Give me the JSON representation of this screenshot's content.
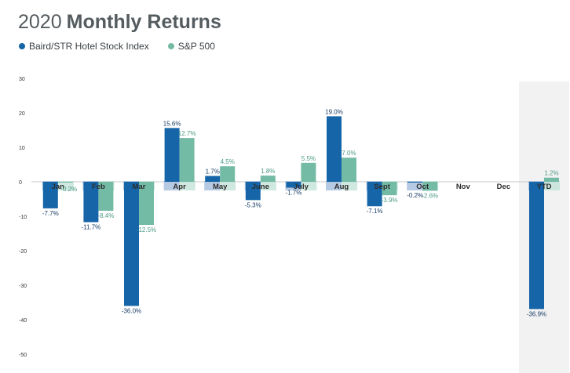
{
  "header": {
    "year": "2020",
    "title": "Monthly Returns"
  },
  "chart_data": {
    "type": "bar",
    "title": "2020 Monthly Returns",
    "xlabel": "",
    "ylabel": "",
    "ylim": [
      -50,
      30
    ],
    "y_ticks": [
      "30",
      "20",
      "10",
      "0",
      "-10",
      "-20",
      "-30",
      "-40",
      "-50"
    ],
    "categories": [
      "Jan",
      "Feb",
      "Mar",
      "Apr",
      "May",
      "June",
      "July",
      "Aug",
      "Sept",
      "Oct",
      "Nov",
      "Dec",
      "YTD"
    ],
    "series": [
      {
        "name": "Baird/STR Hotel Stock Index",
        "color": "#1565a8",
        "values": [
          -7.7,
          -11.7,
          -36.0,
          15.6,
          1.7,
          -5.3,
          -1.7,
          19.0,
          -7.1,
          -0.2,
          null,
          null,
          -36.9
        ],
        "labels": [
          "-7.7%",
          "-11.7%",
          "-36.0%",
          "15.6%",
          "1.7%",
          "-5.3%",
          "-1.7%",
          "19.0%",
          "-7.1%",
          "-0.2%",
          "",
          "",
          "-36.9%"
        ]
      },
      {
        "name": "S&P 500",
        "color": "#74bba6",
        "values": [
          -0.2,
          -8.4,
          -12.5,
          12.7,
          4.5,
          1.8,
          5.5,
          7.0,
          -3.9,
          -2.6,
          null,
          null,
          1.2
        ],
        "labels": [
          "-0.2%",
          "-8.4%",
          "-12.5%",
          "12.7%",
          "4.5%",
          "1.8%",
          "5.5%",
          "7.0%",
          "-3.9%",
          "-2.6%",
          "",
          "",
          "1.2%"
        ]
      }
    ],
    "highlight_category": "YTD",
    "legend": "top-left",
    "grid": false
  }
}
